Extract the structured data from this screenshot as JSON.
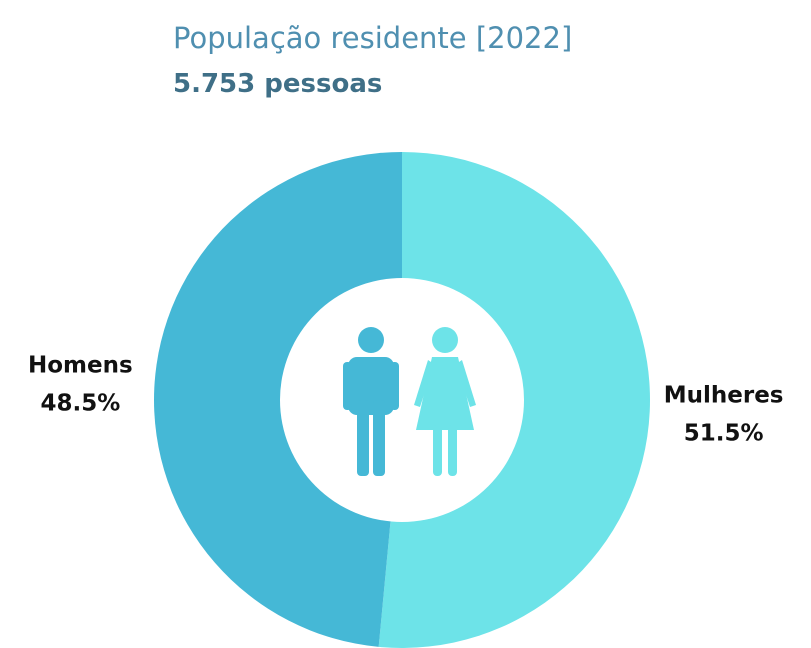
{
  "chart_data": {
    "type": "pie",
    "title": "População residente [2022]",
    "subtitle": "5.753 pessoas",
    "categories": [
      "Mulheres",
      "Homens"
    ],
    "values": [
      51.5,
      48.5
    ],
    "value_labels": [
      "51.5%",
      "48.5%"
    ],
    "colors": [
      "#6de3e8",
      "#45b8d6"
    ]
  }
}
